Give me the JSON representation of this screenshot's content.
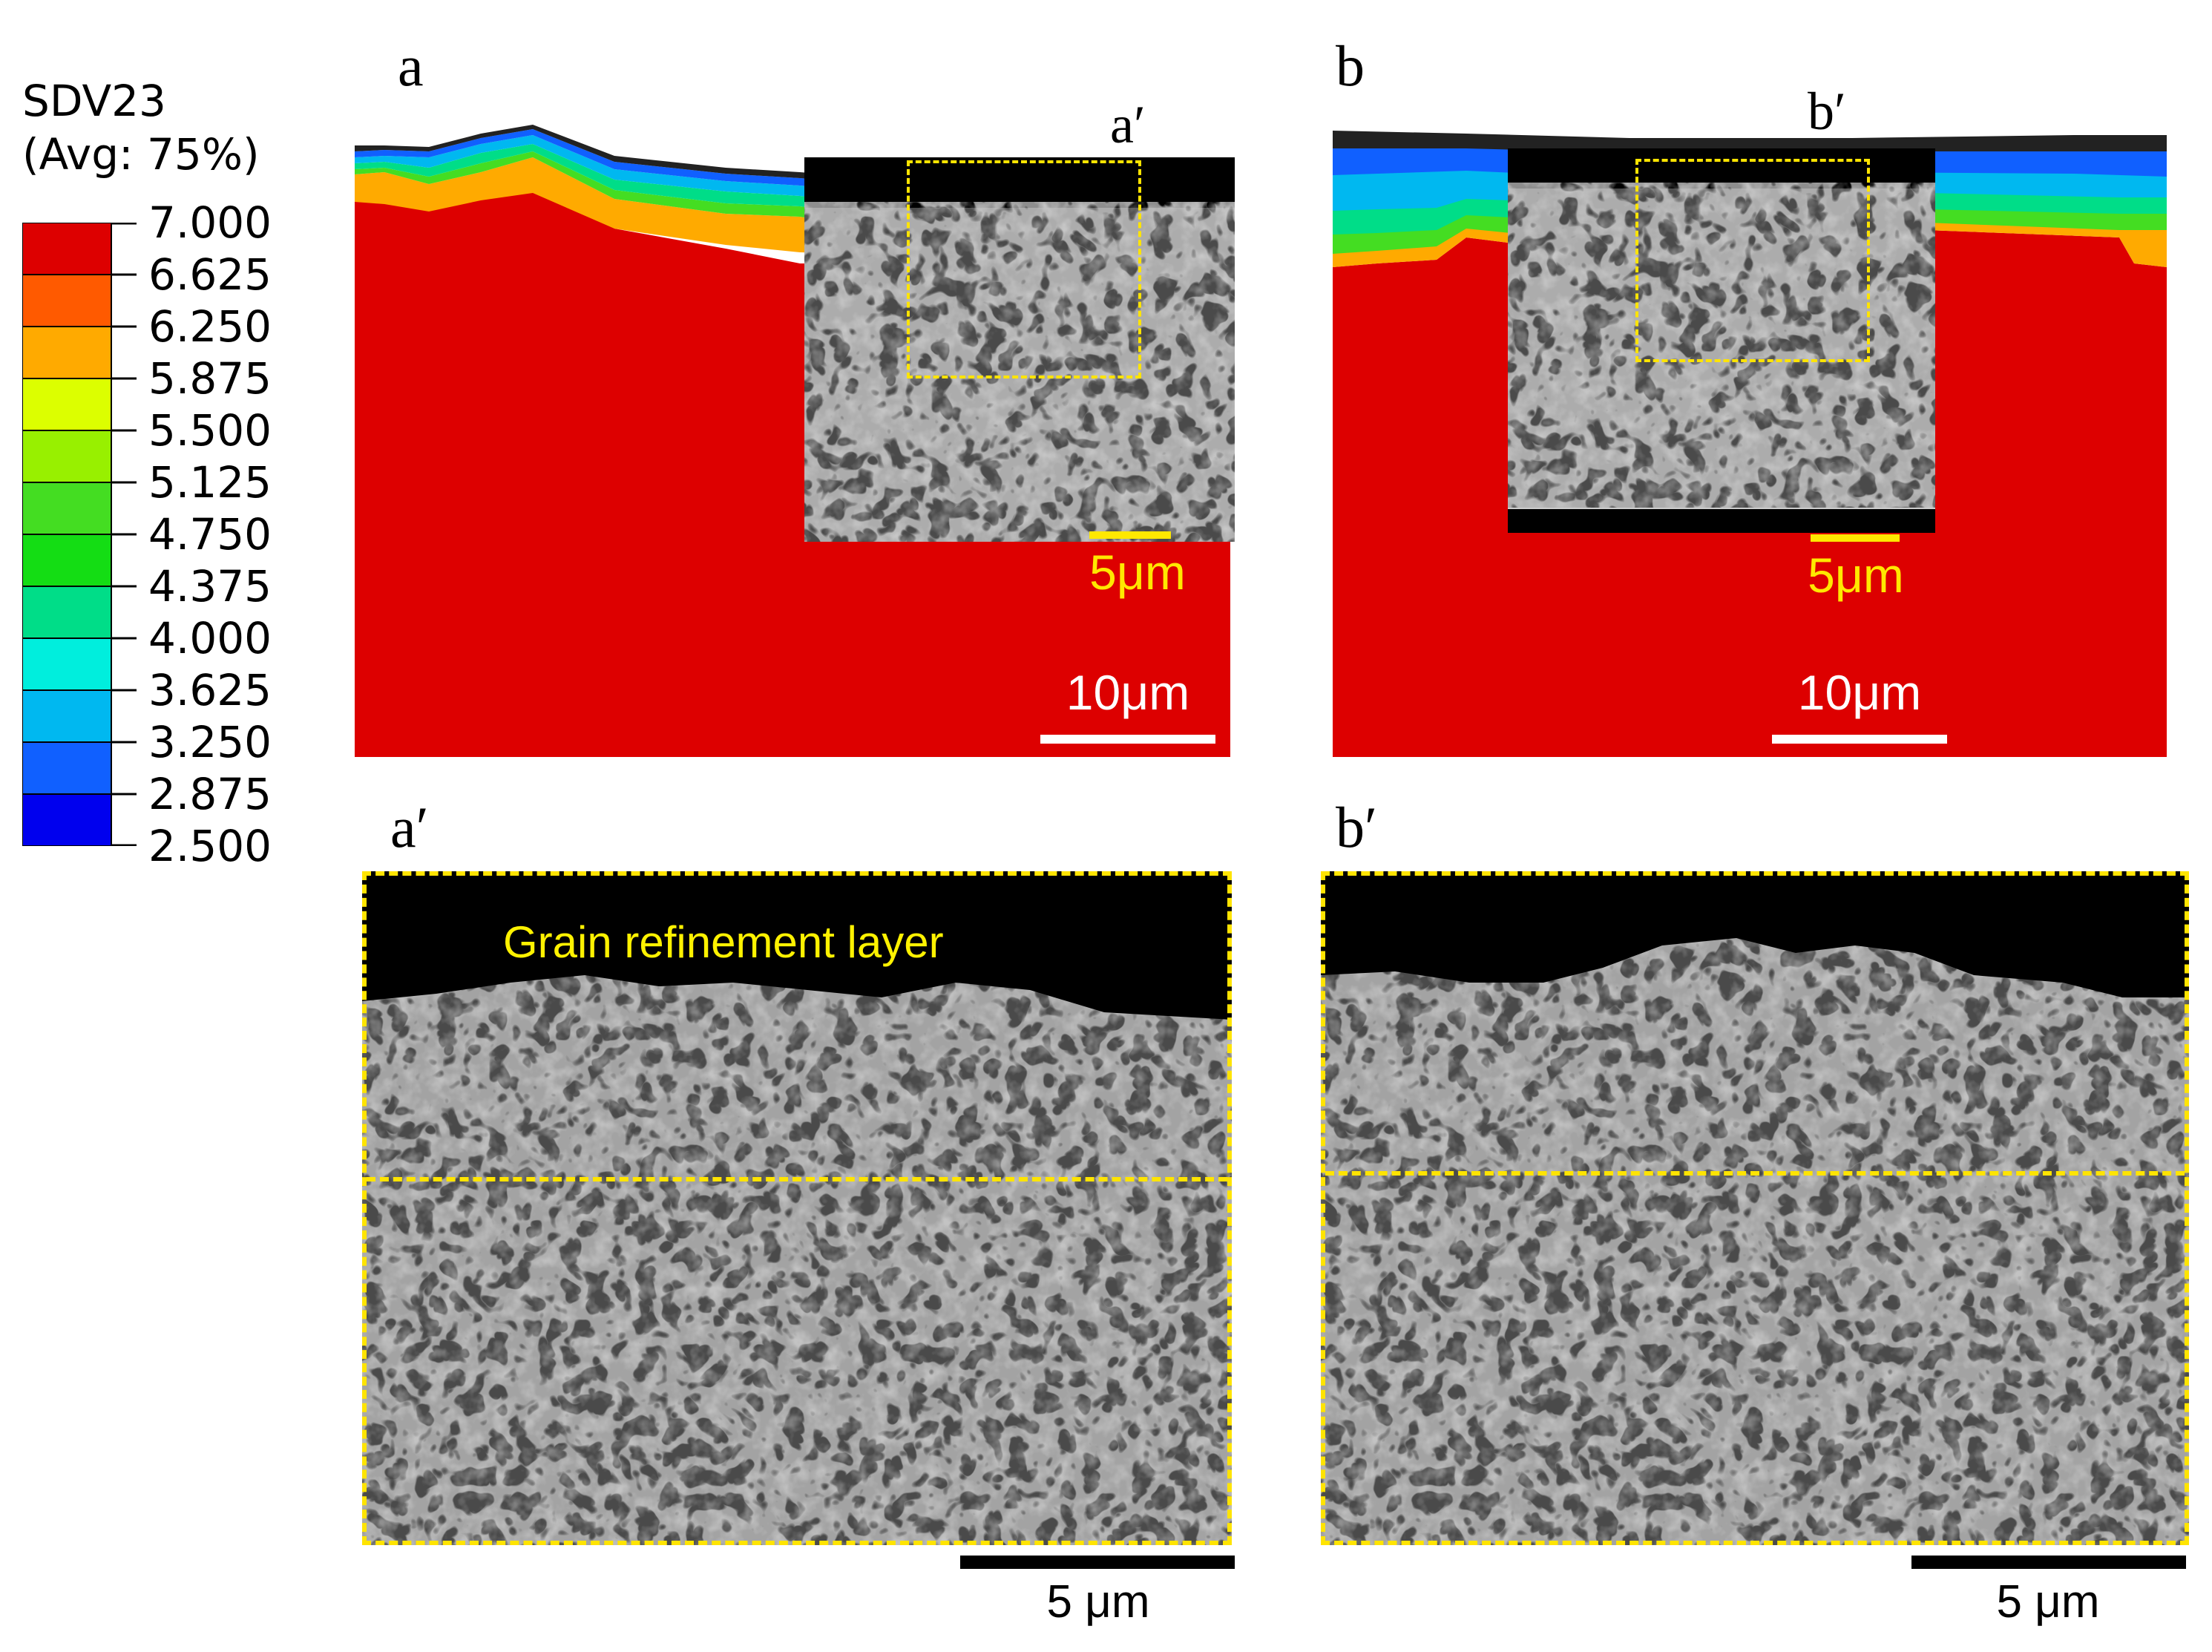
{
  "legend": {
    "title_line1": "SDV23",
    "title_line2": "(Avg: 75%)",
    "values": [
      "7.000",
      "6.625",
      "6.250",
      "5.875",
      "5.500",
      "5.125",
      "4.750",
      "4.375",
      "4.000",
      "3.625",
      "3.250",
      "2.875",
      "2.500"
    ],
    "colors": [
      "#dd0000",
      "#ff5a00",
      "#ffaa00",
      "#dcff00",
      "#98f000",
      "#44dd22",
      "#14dd14",
      "#00dd88",
      "#00eedd",
      "#00b8f0",
      "#1060ff",
      "#0000ee"
    ]
  },
  "panels": {
    "a": {
      "letter": "a",
      "inset_label": "a′",
      "inset_scale": "5μm",
      "main_scale": "10μm"
    },
    "b": {
      "letter": "b",
      "inset_label": "b′",
      "inset_scale": "5μm",
      "main_scale": "10μm"
    },
    "a_prime": {
      "letter": "a′",
      "annotation": "Grain refinement layer",
      "scale": "5 μm"
    },
    "b_prime": {
      "letter": "b′",
      "scale": "5 μm"
    }
  },
  "colors": {
    "red": "#dd0000",
    "dash_yellow": "#ffe400",
    "label_yellow": "#fff200",
    "sem_gray": "#4a4a4a"
  }
}
